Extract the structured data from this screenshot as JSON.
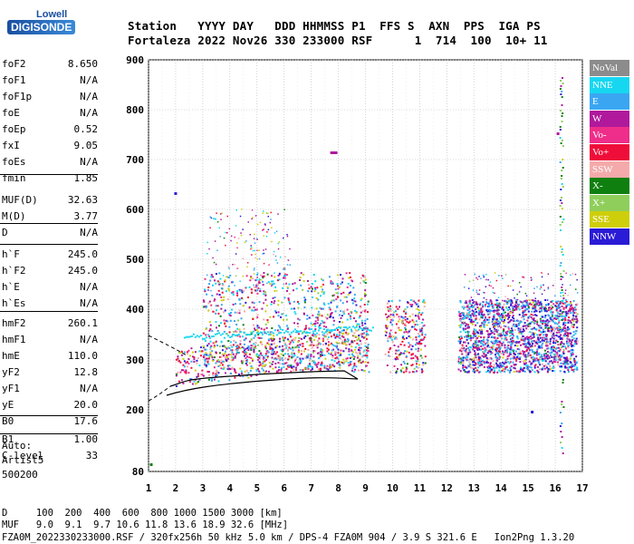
{
  "logo": {
    "line1": "Lowell",
    "line2": "DIGISONDE"
  },
  "header": {
    "line1": "Station   YYYY DAY   DDD HHMMSS P1  FFS S  AXN  PPS  IGA PS",
    "line2": "Fortaleza 2022 Nov26 330 233000 RSF      1  714  100  10+ 11"
  },
  "params": [
    {
      "key": "foF2",
      "value": "8.650"
    },
    {
      "key": "foF1",
      "value": "N/A"
    },
    {
      "key": "foF1p",
      "value": "N/A"
    },
    {
      "key": "foE",
      "value": "N/A"
    },
    {
      "key": "foEp",
      "value": "0.52"
    },
    {
      "key": "fxI",
      "value": "9.05"
    },
    {
      "key": "foEs",
      "value": "N/A"
    },
    {
      "key": "fmin",
      "value": "1.85"
    },
    {
      "key": "MUF(D)",
      "value": "32.63"
    },
    {
      "key": "M(D)",
      "value": "3.77"
    },
    {
      "key": "D",
      "value": "N/A"
    },
    {
      "key": "h`F",
      "value": "245.0"
    },
    {
      "key": "h`F2",
      "value": "245.0"
    },
    {
      "key": "h`E",
      "value": "N/A"
    },
    {
      "key": "h`Es",
      "value": "N/A"
    },
    {
      "key": "hmF2",
      "value": "260.1"
    },
    {
      "key": "hmF1",
      "value": "N/A"
    },
    {
      "key": "hmE",
      "value": "110.0"
    },
    {
      "key": "yF2",
      "value": "12.8"
    },
    {
      "key": "yF1",
      "value": "N/A"
    },
    {
      "key": "yE",
      "value": "20.0"
    },
    {
      "key": "B0",
      "value": "17.6"
    },
    {
      "key": "B1",
      "value": "1.00"
    },
    {
      "key": "C-level",
      "value": "33"
    }
  ],
  "auto": {
    "line1": "Auto:",
    "line2": "Artist5",
    "line3": "500200"
  },
  "legend": [
    {
      "label": "NoVal",
      "color": "#8c8c8c"
    },
    {
      "label": "NNE",
      "color": "#17d7f0"
    },
    {
      "label": "E",
      "color": "#3aa6f2"
    },
    {
      "label": "W",
      "color": "#b0199c"
    },
    {
      "label": "Vo-",
      "color": "#ee2e8a"
    },
    {
      "label": "Vo+",
      "color": "#ef0d3a"
    },
    {
      "label": "SSW",
      "color": "#f4aaaa"
    },
    {
      "label": "X-",
      "color": "#0f7f0f"
    },
    {
      "label": "X+",
      "color": "#8fce5b"
    },
    {
      "label": "SSE",
      "color": "#cfce0b"
    },
    {
      "label": "NNW",
      "color": "#2a1bd6"
    }
  ],
  "axes": {
    "y_ticks": [
      "900",
      "800",
      "700",
      "600",
      "500",
      "400",
      "300",
      "200",
      "80"
    ],
    "x_ticks": [
      "1",
      "2",
      "3",
      "4",
      "5",
      "6",
      "7",
      "8",
      "9",
      "10",
      "11",
      "12",
      "13",
      "14",
      "15",
      "16",
      "17"
    ]
  },
  "footer": {
    "line1": "D     100  200  400  600  800 1000 1500 3000 [km]",
    "line2": "MUF   9.0  9.1  9.7 10.6 11.8 13.6 18.9 32.6 [MHz]",
    "line3": "FZA0M_2022330233000.RSF / 320fx256h 50 kHz 5.0 km / DPS-4 FZA0M 904 / 3.9 S 321.6 E   Ion2Png 1.3.20"
  }
}
